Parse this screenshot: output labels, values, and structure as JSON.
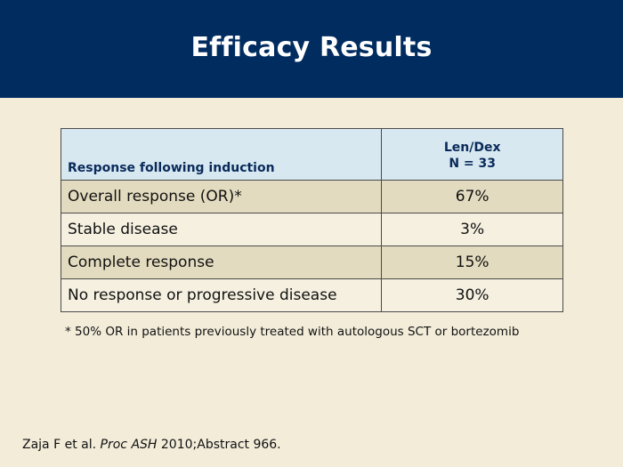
{
  "slide": {
    "title": "Efficacy Results"
  },
  "table": {
    "header": {
      "label": "Response following induction",
      "group_line1": "Len/Dex",
      "group_line2": "N = 33"
    },
    "rows": [
      {
        "label": "Overall response (OR)*",
        "value": "67%"
      },
      {
        "label": "Stable disease",
        "value": "3%"
      },
      {
        "label": "Complete response",
        "value": "15%"
      },
      {
        "label": "No response or progressive disease",
        "value": "30%"
      }
    ]
  },
  "footnote": "* 50% OR in patients previously treated with autologous SCT or bortezomib",
  "citation": {
    "authors": "Zaja F et al.",
    "journal": "Proc ASH",
    "rest": "2010;Abstract 966."
  },
  "colors": {
    "header_bg": "#002c5f",
    "slide_bg": "#f2ecd9",
    "table_header_bg": "#d7e8f1",
    "row_shaded_bg": "#e3dbbf",
    "row_plain_bg": "#f5f0e0",
    "header_text": "#0a2a5a"
  }
}
